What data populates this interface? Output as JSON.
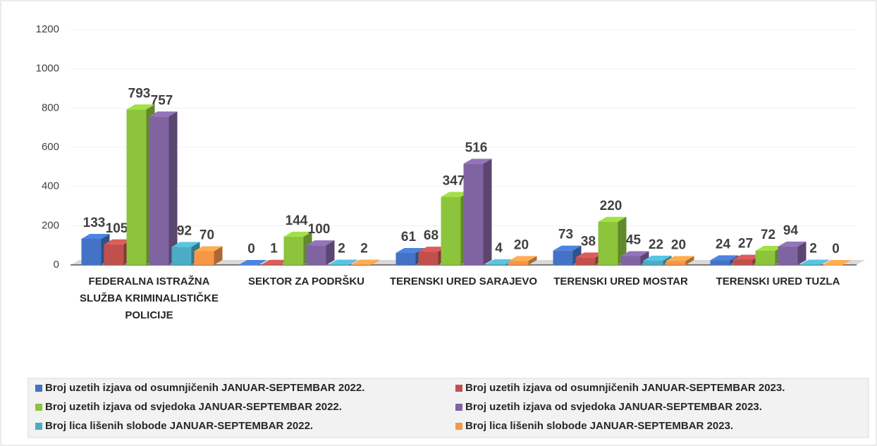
{
  "chart_data": {
    "type": "bar",
    "categories": [
      "FEDERALNA ISTRAŽNA SLUŽBA KRIMINALISTIČKE POLICIJE",
      "SEKTOR ZA PODRŠKU",
      "TERENSKI URED SARAJEVO",
      "TERENSKI URED MOSTAR",
      "TERENSKI URED TUZLA"
    ],
    "series": [
      {
        "name": "Broj uzetih izjava od osumnjičenih JANUAR-SEPTEMBAR 2022.",
        "color": "#4472c4",
        "values": [
          133,
          0,
          61,
          73,
          24
        ]
      },
      {
        "name": "Broj uzetih izjava od osumnjičenih JANUAR-SEPTEMBAR 2023.",
        "color": "#c0504d",
        "values": [
          105,
          1,
          68,
          38,
          27
        ]
      },
      {
        "name": "Broj uzetih izjava od svjedoka JANUAR-SEPTEMBAR 2022.",
        "color": "#8cc43c",
        "values": [
          793,
          144,
          347,
          220,
          72
        ]
      },
      {
        "name": "Broj uzetih izjava od svjedoka JANUAR-SEPTEMBAR 2023.",
        "color": "#8064a2",
        "values": [
          757,
          100,
          516,
          45,
          94
        ]
      },
      {
        "name": "Broj lica lišenih slobode JANUAR-SEPTEMBAR 2022.",
        "color": "#4bacc6",
        "values": [
          92,
          2,
          4,
          22,
          2
        ]
      },
      {
        "name": "Broj lica lišenih slobode JANUAR-SEPTEMBAR 2023.",
        "color": "#f79646",
        "values": [
          70,
          2,
          20,
          20,
          0
        ]
      }
    ],
    "ylim": [
      0,
      1200
    ],
    "yticks": [
      0,
      200,
      400,
      600,
      800,
      1000,
      1200
    ],
    "grid": true,
    "legend": "bottom"
  }
}
